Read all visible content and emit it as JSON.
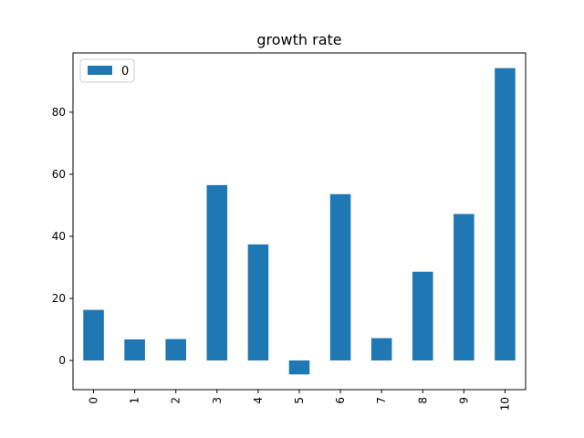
{
  "chart_data": {
    "type": "bar",
    "title": "growth rate",
    "xlabel": "",
    "ylabel": "",
    "categories": [
      "0",
      "1",
      "2",
      "3",
      "4",
      "5",
      "6",
      "7",
      "8",
      "9",
      "10"
    ],
    "series": [
      {
        "name": "0",
        "values": [
          16.3,
          6.8,
          6.9,
          56.5,
          37.4,
          -4.5,
          53.6,
          7.2,
          28.6,
          47.2,
          94.2
        ],
        "color": "#1f77b4"
      }
    ],
    "yticks": [
      0,
      20,
      40,
      60,
      80
    ],
    "ylim": [
      -9.4,
      99.1
    ],
    "grid": false,
    "legend": {
      "position": "top-left",
      "entries": [
        "0"
      ]
    },
    "x_tick_rotation": "vertical"
  }
}
